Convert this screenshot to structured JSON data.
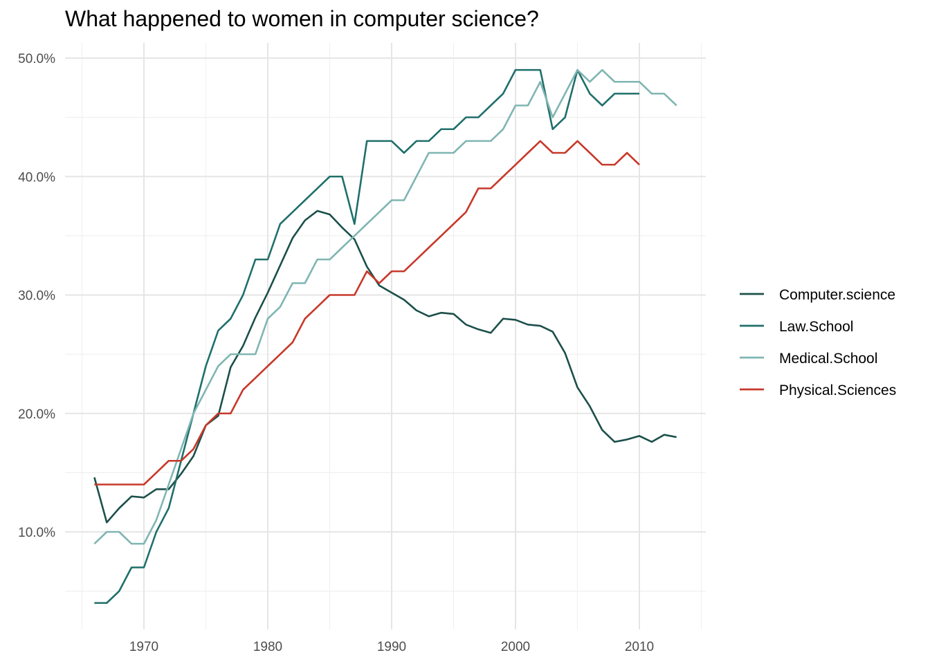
{
  "chart_data": {
    "type": "line",
    "title": "What happened to women in computer science?",
    "xlabel": "",
    "ylabel": "",
    "xlim": [
      1965,
      2015
    ],
    "ylim": [
      3,
      51
    ],
    "x_major_ticks": [
      1970,
      1980,
      1990,
      2000,
      2010
    ],
    "x_minor_ticks": [
      1965,
      1975,
      1985,
      1995,
      2005,
      2015
    ],
    "y_major_ticks": [
      10,
      20,
      30,
      40,
      50
    ],
    "y_minor_ticks": [
      5,
      15,
      25,
      35,
      45
    ],
    "y_tick_labels": [
      "10.0%",
      "20.0%",
      "30.0%",
      "40.0%",
      "50.0%"
    ],
    "x_tick_labels": [
      "1970",
      "1980",
      "1990",
      "2000",
      "2010"
    ],
    "grid": true,
    "legend_position": "right",
    "series": [
      {
        "name": "Computer.science",
        "color": "#1b4f4a",
        "x": [
          1966,
          1967,
          1968,
          1969,
          1970,
          1971,
          1972,
          1973,
          1974,
          1975,
          1976,
          1977,
          1978,
          1979,
          1980,
          1981,
          1982,
          1983,
          1984,
          1985,
          1986,
          1987,
          1988,
          1989,
          1990,
          1991,
          1992,
          1993,
          1994,
          1995,
          1996,
          1997,
          1998,
          1999,
          2000,
          2001,
          2002,
          2003,
          2004,
          2005,
          2006,
          2007,
          2008,
          2009,
          2010,
          2011,
          2012,
          2013
        ],
        "values": [
          14.6,
          10.8,
          12.0,
          13.0,
          12.9,
          13.6,
          13.6,
          14.9,
          16.4,
          19.0,
          19.8,
          23.9,
          25.7,
          28.1,
          30.2,
          32.5,
          34.8,
          36.3,
          37.1,
          36.8,
          35.7,
          34.7,
          32.4,
          30.8,
          30.2,
          29.6,
          28.7,
          28.2,
          28.5,
          28.4,
          27.5,
          27.1,
          26.8,
          28.0,
          27.9,
          27.5,
          27.4,
          26.9,
          25.1,
          22.2,
          20.6,
          18.6,
          17.6,
          17.8,
          18.1,
          17.6,
          18.2,
          18.0
        ]
      },
      {
        "name": "Law.School",
        "color": "#1f6f6b",
        "x": [
          1966,
          1967,
          1968,
          1969,
          1970,
          1971,
          1972,
          1973,
          1974,
          1975,
          1976,
          1977,
          1978,
          1979,
          1980,
          1981,
          1982,
          1983,
          1984,
          1985,
          1986,
          1987,
          1988,
          1989,
          1990,
          1991,
          1992,
          1993,
          1994,
          1995,
          1996,
          1997,
          1998,
          1999,
          2000,
          2001,
          2002,
          2003,
          2004,
          2005,
          2006,
          2007,
          2008,
          2009,
          2010
        ],
        "values": [
          4,
          4,
          5,
          7,
          7,
          10,
          12,
          16,
          20,
          24,
          27,
          28,
          30,
          33,
          33,
          36,
          37,
          38,
          39,
          40,
          40,
          36,
          43,
          43,
          43,
          42,
          43,
          43,
          44,
          44,
          45,
          45,
          46,
          47,
          49,
          49,
          49,
          44,
          45,
          49,
          47,
          46,
          47,
          47,
          47
        ]
      },
      {
        "name": "Medical.School",
        "color": "#7fb5b2",
        "x": [
          1966,
          1967,
          1968,
          1969,
          1970,
          1971,
          1972,
          1973,
          1974,
          1975,
          1976,
          1977,
          1978,
          1979,
          1980,
          1981,
          1982,
          1983,
          1984,
          1985,
          1986,
          1987,
          1988,
          1989,
          1990,
          1991,
          1992,
          1993,
          1994,
          1995,
          1996,
          1997,
          1998,
          1999,
          2000,
          2001,
          2002,
          2003,
          2004,
          2005,
          2006,
          2007,
          2008,
          2009,
          2010,
          2011,
          2012,
          2013
        ],
        "values": [
          9,
          10,
          10,
          9,
          9,
          11,
          14,
          17,
          20,
          22,
          24,
          25,
          25,
          25,
          28,
          29,
          31,
          31,
          33,
          33,
          34,
          35,
          36,
          37,
          38,
          38,
          40,
          42,
          42,
          42,
          43,
          43,
          43,
          44,
          46,
          46,
          48,
          45,
          47,
          49,
          48,
          49,
          48,
          48,
          48,
          47,
          47,
          46
        ]
      },
      {
        "name": "Physical.Sciences",
        "color": "#c7382a",
        "x": [
          1966,
          1967,
          1968,
          1969,
          1970,
          1971,
          1972,
          1973,
          1974,
          1975,
          1976,
          1977,
          1978,
          1979,
          1980,
          1981,
          1982,
          1983,
          1984,
          1985,
          1986,
          1987,
          1988,
          1989,
          1990,
          1991,
          1992,
          1993,
          1994,
          1995,
          1996,
          1997,
          1998,
          1999,
          2000,
          2001,
          2002,
          2003,
          2004,
          2005,
          2006,
          2007,
          2008,
          2009,
          2010
        ],
        "values": [
          14,
          14,
          14,
          14,
          14,
          15,
          16,
          16,
          17,
          19,
          20,
          20,
          22,
          23,
          24,
          25,
          26,
          28,
          29,
          30,
          30,
          30,
          32,
          31,
          32,
          32,
          33,
          34,
          35,
          36,
          37,
          39,
          39,
          40,
          41,
          42,
          43,
          42,
          42,
          43,
          42,
          41,
          41,
          42,
          41
        ]
      }
    ]
  }
}
